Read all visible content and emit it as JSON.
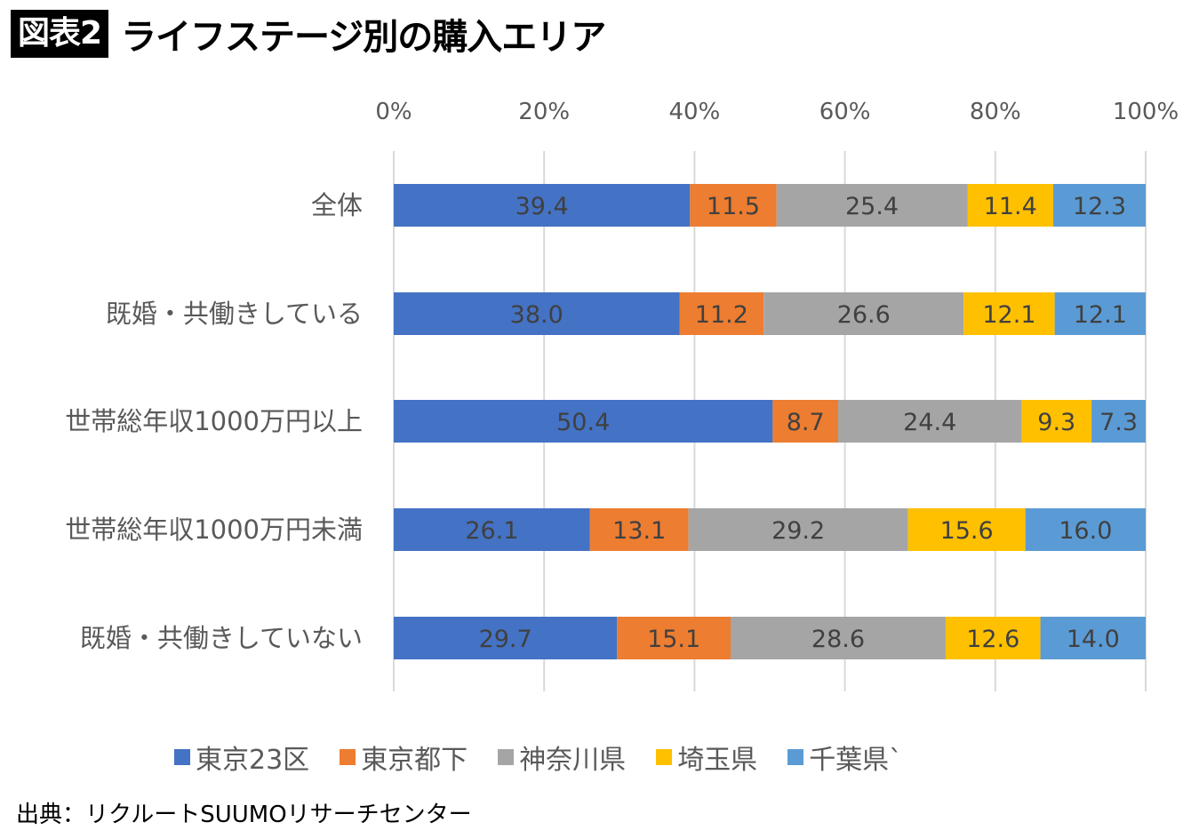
{
  "header": {
    "badge": "図表2",
    "title": "ライフステージ別の購入エリア"
  },
  "source": "出典：リクルートSUUMOリサーチセンター",
  "chart_data": {
    "type": "bar",
    "orientation": "horizontal",
    "stacked": "percent",
    "title": "ライフステージ別の購入エリア",
    "xlabel": "",
    "ylabel": "",
    "xlim": [
      0,
      100
    ],
    "x_ticks": [
      "0%",
      "20%",
      "40%",
      "60%",
      "80%",
      "100%"
    ],
    "x_axis_position": "top",
    "grid": true,
    "legend_position": "bottom",
    "categories": [
      "全体",
      "既婚・共働きしている",
      "世帯総年収1000万円以上",
      "世帯総年収1000万円未満",
      "既婚・共働きしていない"
    ],
    "series": [
      {
        "name": "東京23区",
        "color": "#4472C4",
        "values": [
          39.4,
          38.0,
          50.4,
          26.1,
          29.7
        ]
      },
      {
        "name": "東京都下",
        "color": "#ED7D31",
        "values": [
          11.5,
          11.2,
          8.7,
          13.1,
          15.1
        ]
      },
      {
        "name": "神奈川県",
        "color": "#A5A5A5",
        "values": [
          25.4,
          26.6,
          24.4,
          29.2,
          28.6
        ]
      },
      {
        "name": "埼玉県",
        "color": "#FFC000",
        "values": [
          11.4,
          12.1,
          9.3,
          15.6,
          12.6
        ]
      },
      {
        "name": "千葉県",
        "color": "#5B9BD5",
        "values": [
          12.3,
          12.1,
          7.3,
          16.0,
          14.0
        ]
      }
    ],
    "legend_labels": [
      "東京23区",
      "東京都下",
      "神奈川県",
      "埼玉県",
      "千葉県ˋ"
    ]
  }
}
